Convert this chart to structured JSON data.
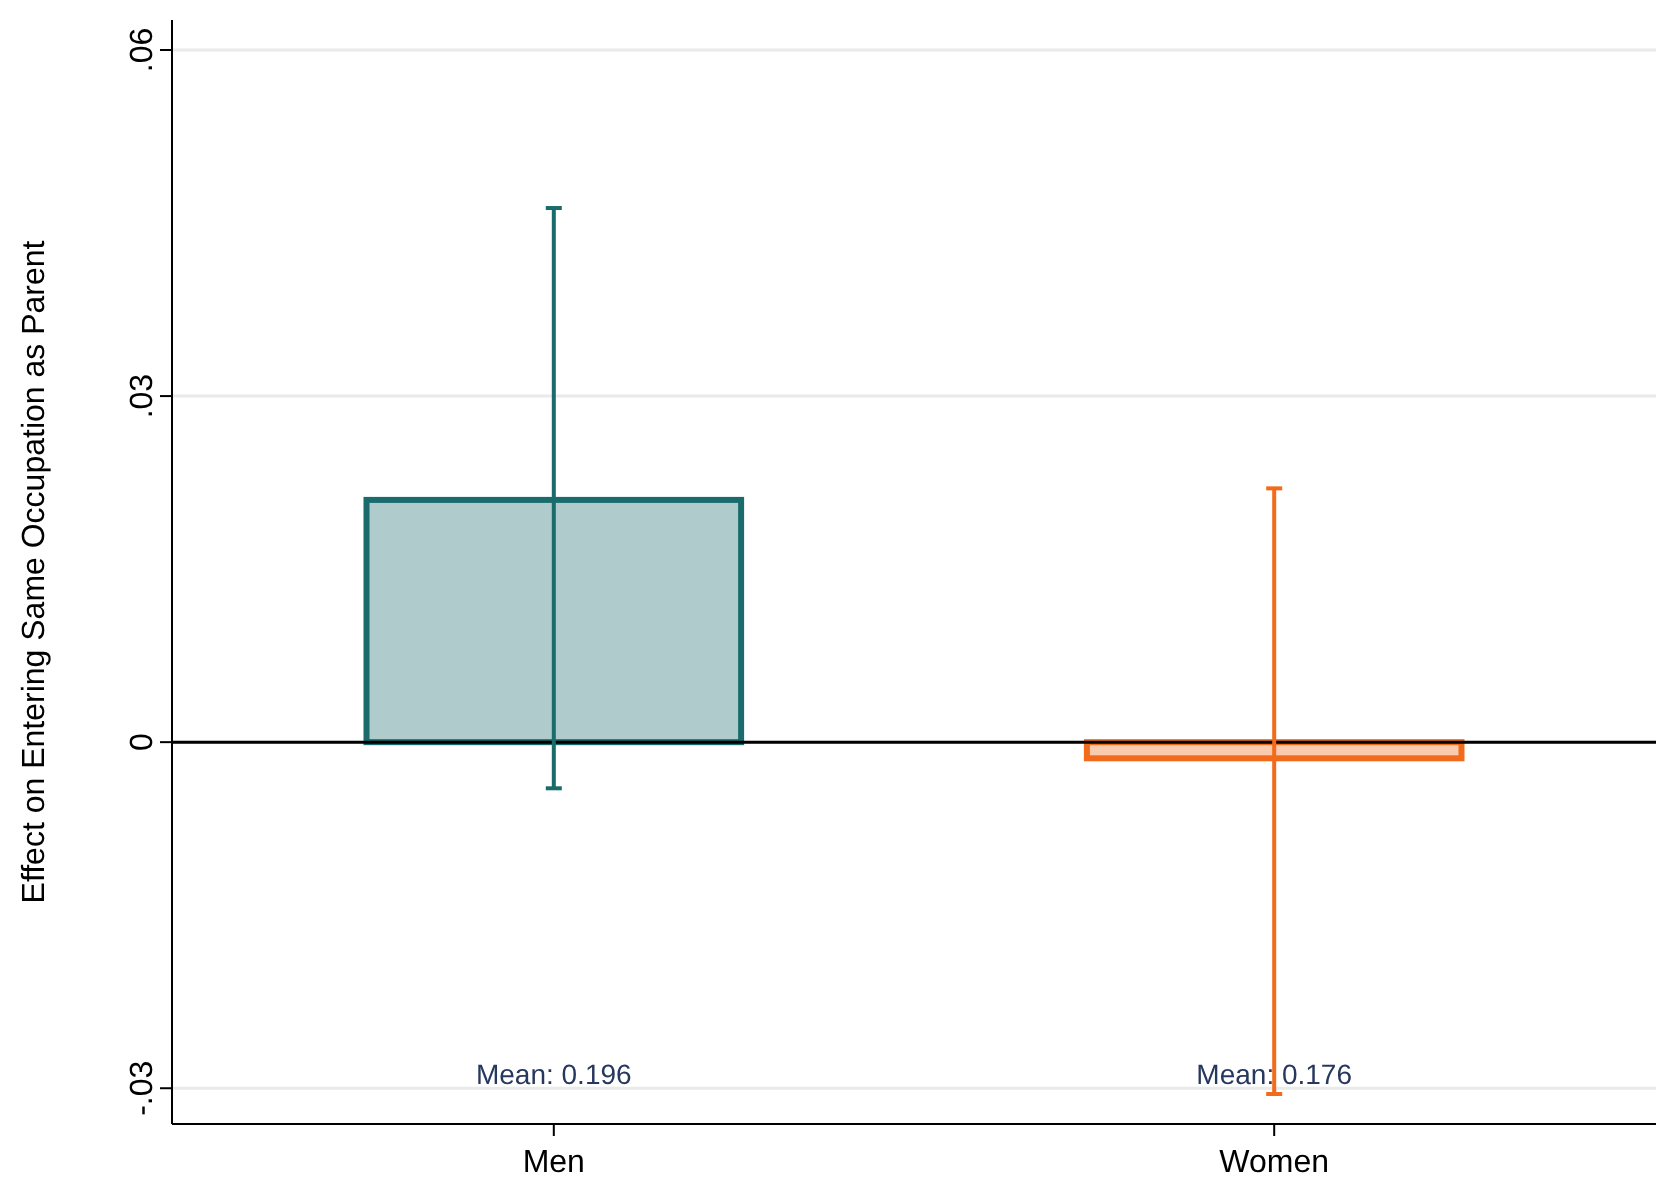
{
  "chart_data": {
    "type": "bar",
    "ylabel": "Effect on Entering Same Occupation as Parent",
    "categories": [
      "Men",
      "Women"
    ],
    "values": [
      0.021,
      -0.0014
    ],
    "colors": [
      "#1a6b6b",
      "#f26a1b"
    ],
    "errors": [
      [
        -0.004,
        0.0463
      ],
      [
        -0.0305,
        0.022
      ]
    ],
    "ylim": [
      -0.0331,
      0.0626
    ],
    "yticks": [
      {
        "value": -0.03,
        "label": "-.03"
      },
      {
        "value": 0,
        "label": "0"
      },
      {
        "value": 0.03,
        "label": ".03"
      },
      {
        "value": 0.06,
        "label": ".06"
      }
    ],
    "grid": "y",
    "ref_lines": [
      {
        "axis": "y",
        "value": 0,
        "color": "#000000"
      }
    ],
    "annotations": [
      "Mean: 0.196",
      "Mean: 0.176"
    ]
  }
}
